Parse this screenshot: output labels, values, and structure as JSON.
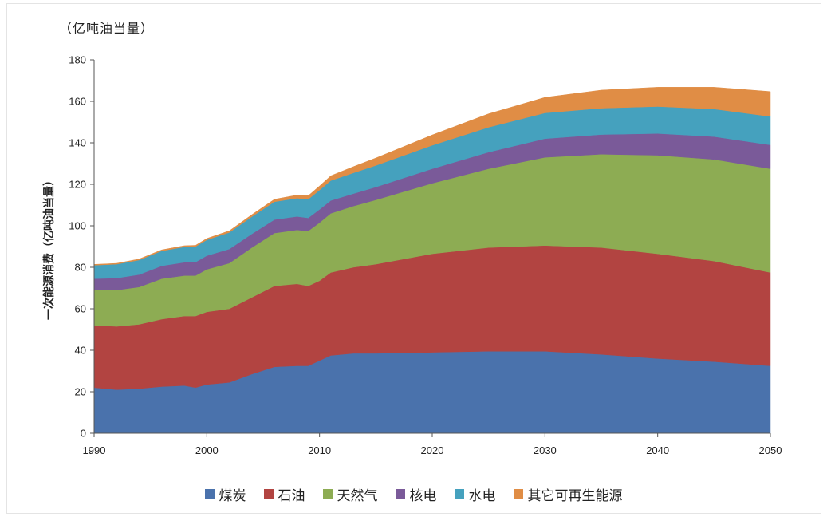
{
  "chart_data": {
    "type": "area",
    "stacked": true,
    "unit_label": "（亿吨油当量）",
    "ylabel": "一次能源消费（亿吨油当量）",
    "xlabel": "",
    "xlim": [
      1990,
      2050
    ],
    "ylim": [
      0,
      180
    ],
    "x_ticks": [
      "1990",
      "2000",
      "2010",
      "2020",
      "2030",
      "2040",
      "2050"
    ],
    "y_ticks": [
      "0",
      "20",
      "40",
      "60",
      "80",
      "100",
      "120",
      "140",
      "160",
      "180"
    ],
    "grid": false,
    "legend_position": "bottom",
    "x": [
      1990,
      1992,
      1994,
      1996,
      1998,
      1999,
      2000,
      2002,
      2004,
      2006,
      2008,
      2009,
      2010,
      2011,
      2013,
      2015,
      2020,
      2025,
      2030,
      2035,
      2040,
      2045,
      2050
    ],
    "series": [
      {
        "name": "煤炭",
        "color": "#4a72ac",
        "values": [
          22,
          21,
          21.5,
          22.5,
          23,
          22,
          23.5,
          24.5,
          28.5,
          32,
          32.5,
          32.5,
          35,
          37.5,
          38.5,
          38.5,
          39,
          39.5,
          39.5,
          38,
          36,
          34.5,
          32.5
        ]
      },
      {
        "name": "石油",
        "color": "#b24441",
        "values": [
          30,
          30.5,
          31,
          32.5,
          33.5,
          34.5,
          35,
          35.5,
          37,
          39,
          39.5,
          38.5,
          38.5,
          40,
          41.5,
          43,
          47.5,
          50,
          51,
          51.5,
          50.5,
          48.5,
          45
        ]
      },
      {
        "name": "天然气",
        "color": "#8dac53",
        "values": [
          17,
          17.5,
          18,
          19.5,
          19.5,
          19.5,
          20.5,
          22,
          24,
          25.5,
          26,
          26.5,
          28,
          28.5,
          29.5,
          31,
          34,
          38,
          42.5,
          45,
          47.5,
          49,
          50
        ]
      },
      {
        "name": "核电",
        "color": "#7a5a99",
        "values": [
          5.5,
          5.8,
          6,
          6.2,
          6.4,
          6.5,
          6.6,
          6.8,
          6.6,
          6.5,
          6.5,
          6.3,
          6.4,
          6.2,
          6,
          6.2,
          7,
          8,
          9,
          9.5,
          10.5,
          11,
          11.5
        ]
      },
      {
        "name": "水电",
        "color": "#45a1be",
        "values": [
          6.5,
          6.7,
          7,
          7.2,
          7.4,
          7.5,
          7.6,
          8,
          8.3,
          8.6,
          8.8,
          9,
          9.3,
          9.6,
          10,
          10.4,
          11.3,
          12,
          12.4,
          12.7,
          13,
          13.3,
          13.7
        ]
      },
      {
        "name": "其它可再生能源",
        "color": "#e08d45",
        "values": [
          0.4,
          0.4,
          0.5,
          0.5,
          0.6,
          0.6,
          0.7,
          0.8,
          1,
          1.2,
          1.5,
          1.7,
          2,
          2.3,
          3,
          3.6,
          5,
          6.5,
          7.5,
          8.7,
          9.3,
          10.5,
          12
        ]
      }
    ]
  }
}
